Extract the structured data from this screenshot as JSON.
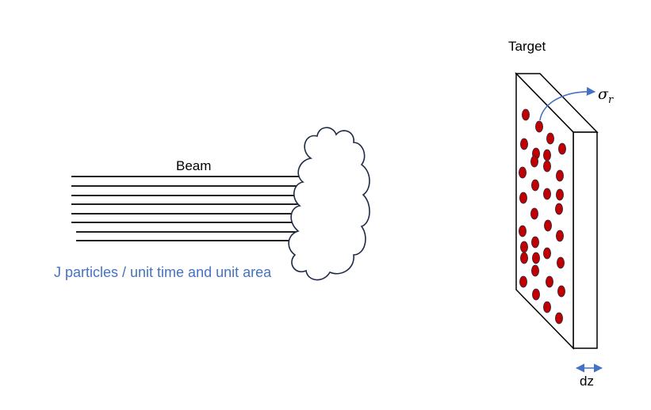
{
  "labels": {
    "beam": "Beam",
    "flux": "J particles / unit time and unit area",
    "target": "Target",
    "cross_section_symbol": "σ",
    "cross_section_subscript": "r",
    "thickness": "dz"
  },
  "colors": {
    "flux_text": "#4472c4",
    "particle_fill": "#c00000",
    "particle_stroke": "#1f2a44",
    "arrow": "#4472c4",
    "stroke": "#000000",
    "cloud_stroke": "#1f2a44"
  },
  "beam": {
    "line_count": 8
  },
  "target": {
    "particle_count": 33
  }
}
